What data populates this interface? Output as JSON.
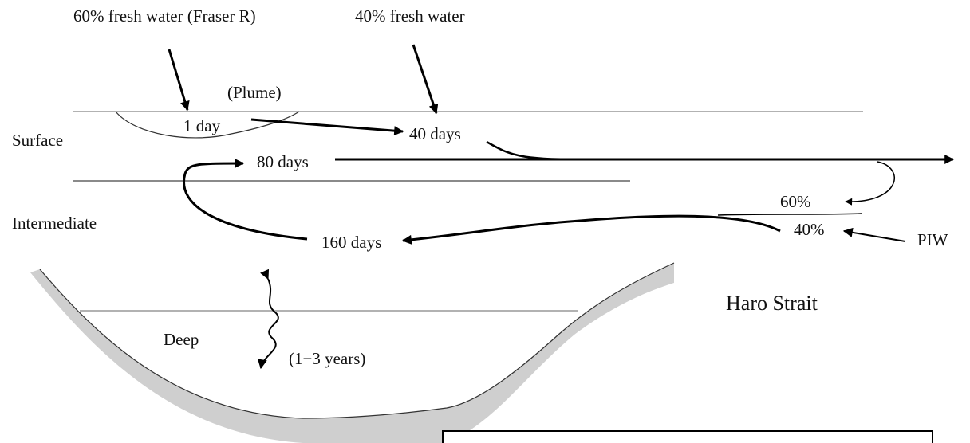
{
  "inputs": {
    "fraser": "60% fresh water (Fraser R)",
    "other": "40% fresh water",
    "piw": "PIW"
  },
  "layers": {
    "surface": "Surface",
    "intermediate": "Intermediate",
    "deep": "Deep"
  },
  "plume": {
    "label": "(Plume)",
    "time": "1 day"
  },
  "times": {
    "surface_outflow": "40 days",
    "surface_return": "80 days",
    "intermediate_return": "160 days",
    "deep_mixing": "(1−3 years)"
  },
  "split": {
    "upper": "60%",
    "lower": "40%"
  },
  "location": "Haro Strait"
}
